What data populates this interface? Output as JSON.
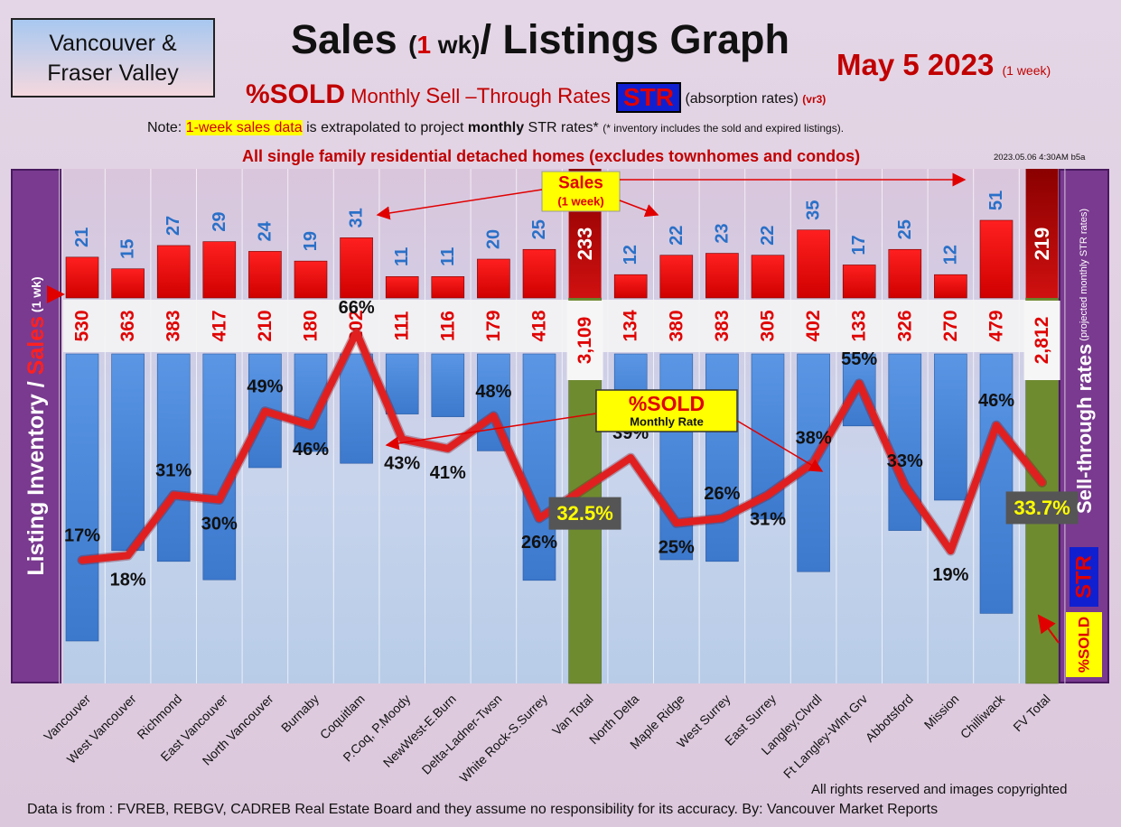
{
  "header": {
    "region_line1": "Vancouver &",
    "region_line2": "Fraser Valley",
    "title_a": "Sales ",
    "title_b": "(",
    "title_c": "1",
    "title_d": " wk)",
    "title_e": "/ Listings Graph",
    "date": "May 5  2023",
    "date_note": "(1 week)",
    "sub_a": "%SOLD",
    "sub_b": " Monthly ",
    "sub_c": "S",
    "sub_d": "ell –",
    "sub_e": "T",
    "sub_f": "hrough ",
    "sub_g": "R",
    "sub_h": "ates ",
    "str": "STR",
    "sub_i": " (absorption rates) ",
    "sub_j": "(vr3)",
    "note_a": "Note: ",
    "note_b": "1-week sales data",
    "note_c": " is extrapolated to project ",
    "note_d": "monthly",
    "note_e": " STR rates* ",
    "note_f": "(* inventory includes the sold and expired listings).",
    "scope": "All single family residential detached homes (excludes townhomes and condos)",
    "stamp": "2023.05.06 4:30AM b5a"
  },
  "footer": {
    "source": "Data is from : FVREB, REBGV, CADREB Real Estate Board and they assume no responsibility for its accuracy. By: Vancouver Market Reports",
    "rights": "All rights reserved and  images copyrighted"
  },
  "annotations": {
    "sales_label": "Sales",
    "sales_sub": "(1 week)",
    "sold_label": "%SOLD",
    "sold_sub": "Monthly Rate",
    "left_axis_a": "Listing Inventory ",
    "left_axis_b": "/ ",
    "left_axis_c": "Sales",
    "left_axis_d": " (1 wk)",
    "right_axis_a": "Sell-through rates",
    "right_axis_b": " (projected monthly STR rates)",
    "right_str": "STR",
    "right_sold": "%SOLD"
  },
  "chart_data": {
    "type": "bar",
    "categories": [
      "Vancouver",
      "West Vancouver",
      "Richmond",
      "East Vancouver",
      "North Vancouver",
      "Burnaby",
      "Coquitlam",
      "P.Coq, P.Moody",
      "NewWest-E.Burn",
      "Delta-Ladner-Twsn",
      "White Rock-S.Surrey",
      "Van Total",
      "North Delta",
      "Maple Ridge",
      "West Surrey",
      "East Surrey",
      "Langley,Clvrdl",
      "Ft Langley-Wlnt Grv",
      "Abbotsford",
      "Mission",
      "Chilliwack",
      "FV Total"
    ],
    "series": [
      {
        "name": "Sales",
        "values": [
          21,
          15,
          27,
          29,
          24,
          19,
          31,
          11,
          11,
          20,
          25,
          233,
          12,
          22,
          23,
          22,
          35,
          17,
          25,
          12,
          51,
          219
        ]
      },
      {
        "name": "Listing Inventory",
        "values": [
          "530",
          "363",
          "383",
          "417",
          "210",
          "180",
          "202",
          "111",
          "116",
          "179",
          "418",
          "3,109",
          "134",
          "380",
          "383",
          "305",
          "402",
          "133",
          "326",
          "270",
          "479",
          "2,812"
        ]
      },
      {
        "name": "%SOLD",
        "values": [
          "17%",
          "18%",
          "31%",
          "30%",
          "49%",
          "46%",
          "66%",
          "43%",
          "41%",
          "48%",
          "26%",
          "32.5%",
          "39%",
          "25%",
          "26%",
          "31%",
          "38%",
          "55%",
          "33%",
          "19%",
          "46%",
          "33.7%"
        ]
      }
    ],
    "totals": [
      "Van Total",
      "FV Total"
    ],
    "colors": {
      "sales": "#ee0000",
      "inventory": "#4a86d8",
      "totals": "#6f8b30",
      "total_sales": "#b00000",
      "line": "#e02020"
    }
  }
}
